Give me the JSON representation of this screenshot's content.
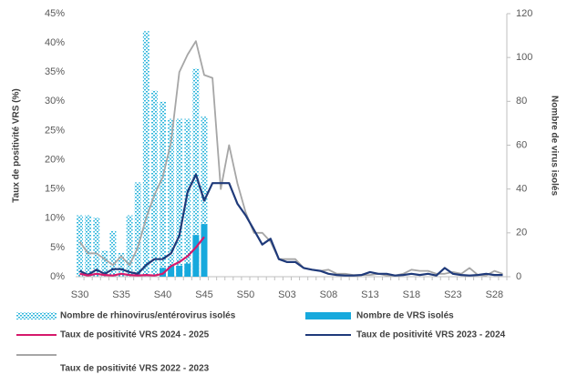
{
  "chart_data": {
    "type": "combo",
    "y_label": "Taux de positivité VRS (%)",
    "y2_label": "Nombre de virus isolés",
    "categories": [
      "S30",
      null,
      null,
      null,
      null,
      "S35",
      null,
      null,
      null,
      null,
      "S40",
      null,
      null,
      null,
      null,
      "S45",
      null,
      null,
      null,
      null,
      "S50",
      null,
      null,
      null,
      null,
      "S03",
      null,
      null,
      null,
      null,
      "S08",
      null,
      null,
      null,
      null,
      "S13",
      null,
      null,
      null,
      null,
      "S18",
      null,
      null,
      null,
      null,
      "S23",
      null,
      null,
      null,
      null,
      "S28",
      null
    ],
    "ylim": [
      0,
      45
    ],
    "yticks": [
      {
        "value": 0,
        "label": "0%"
      },
      {
        "value": 5,
        "label": "5%"
      },
      {
        "value": 10,
        "label": "10%"
      },
      {
        "value": 15,
        "label": "15%"
      },
      {
        "value": 20,
        "label": "20%"
      },
      {
        "value": 25,
        "label": "25%"
      },
      {
        "value": 30,
        "label": "30%"
      },
      {
        "value": 35,
        "label": "35%"
      },
      {
        "value": 40,
        "label": "40%"
      },
      {
        "value": 45,
        "label": "45%"
      }
    ],
    "y2lim": [
      0,
      120
    ],
    "y2ticks": [
      0,
      20,
      40,
      60,
      80,
      100,
      120
    ],
    "legend": "bottom",
    "series": [
      {
        "name": "Nombre de rhinovirus/entérovirus isolés",
        "type": "bar",
        "axis": "y2",
        "color": "#2fb6dc",
        "pattern": "dots",
        "values": [
          28,
          28,
          27,
          12,
          21,
          11,
          28,
          43,
          112,
          85,
          80,
          72,
          72,
          72,
          95,
          73,
          null,
          null,
          null,
          null,
          null,
          null,
          null,
          null,
          null,
          null,
          null,
          null,
          null,
          null,
          null,
          null,
          null,
          null,
          null,
          null,
          null,
          null,
          null,
          null,
          null,
          null,
          null,
          null,
          null,
          null,
          null,
          null,
          null,
          null,
          null,
          null
        ]
      },
      {
        "name": "Nombre de VRS isolés",
        "type": "bar",
        "axis": "y2",
        "color": "#17a9dd",
        "values": [
          null,
          null,
          null,
          null,
          null,
          null,
          null,
          null,
          null,
          null,
          4,
          5,
          5,
          6,
          19,
          24,
          null,
          null,
          null,
          null,
          null,
          null,
          null,
          null,
          null,
          null,
          null,
          null,
          null,
          null,
          null,
          null,
          null,
          null,
          null,
          null,
          null,
          null,
          null,
          null,
          null,
          null,
          null,
          null,
          null,
          null,
          null,
          null,
          null,
          null,
          null,
          null
        ]
      },
      {
        "name": "Taux de positivité VRS 2024 - 2025",
        "type": "line",
        "color": "#d6196b",
        "values": [
          0.5,
          0.2,
          0.5,
          0.3,
          0.2,
          0.5,
          0.3,
          0.2,
          0.3,
          0.2,
          0.5,
          1.8,
          2.5,
          3.5,
          5,
          6.8,
          null,
          null,
          null,
          null,
          null,
          null,
          null,
          null,
          null,
          null,
          null,
          null,
          null,
          null,
          null,
          null,
          null,
          null,
          null,
          null,
          null,
          null,
          null,
          null,
          null,
          null,
          null,
          null,
          null,
          null,
          null,
          null,
          null,
          null,
          null,
          null
        ]
      },
      {
        "name": "Taux de positivité VRS 2023 - 2024",
        "type": "line",
        "color": "#1f3a7a",
        "values": [
          1,
          0.3,
          1.2,
          0.5,
          1.3,
          1.3,
          0.8,
          0.5,
          2,
          3,
          3,
          4,
          7,
          14.5,
          17.5,
          13,
          16,
          16,
          16,
          12.5,
          10.5,
          8,
          5.5,
          6.5,
          3,
          2.5,
          2.5,
          1.5,
          1.2,
          1,
          0.5,
          0.3,
          0.2,
          0.2,
          0.3,
          0.8,
          0.5,
          0.5,
          0.2,
          0.3,
          0.5,
          0.3,
          0.5,
          0.2,
          1.5,
          0.5,
          0.3,
          0.2,
          0.3,
          0.5,
          0.3,
          0.3
        ]
      },
      {
        "name": "Taux de positivité VRS 2022 - 2023",
        "type": "line",
        "color": "#a6a6a6",
        "values": [
          6,
          4,
          4,
          3,
          2,
          3.5,
          2,
          5,
          10,
          14,
          17,
          23,
          35,
          38,
          40.3,
          34.5,
          34,
          15,
          22.5,
          16,
          11,
          7.5,
          7.5,
          6,
          3,
          3,
          3,
          1.5,
          1.2,
          1,
          1.2,
          0.5,
          0.5,
          0.3,
          0.3,
          0.3,
          0.5,
          0.2,
          0.2,
          0.5,
          1.2,
          1,
          1,
          0.5,
          0.5,
          0.8,
          0.5,
          1.5,
          0.3,
          0.2,
          1,
          0.5
        ]
      }
    ]
  }
}
